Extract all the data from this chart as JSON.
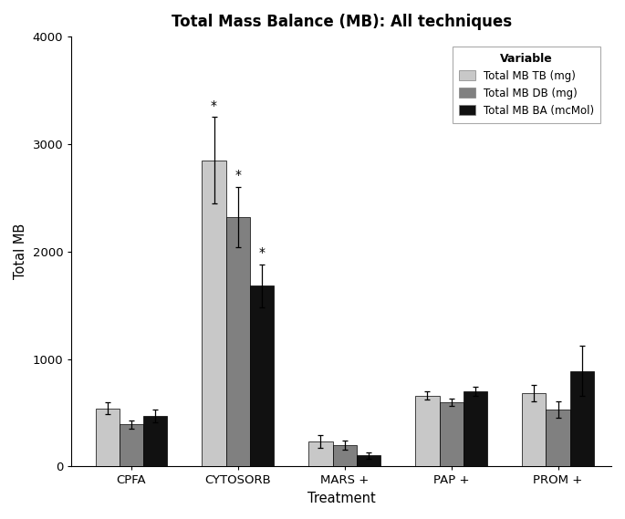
{
  "title": "Total Mass Balance (MB): All techniques",
  "xlabel": "Treatment",
  "ylabel": "Total MB",
  "ylim": [
    0,
    4000
  ],
  "yticks": [
    0,
    1000,
    2000,
    3000,
    4000
  ],
  "categories": [
    "CPFA",
    "CYTOSORB",
    "MARS +",
    "PAP +",
    "PROM +"
  ],
  "series": {
    "TB": {
      "label": "Total MB TB (mg)",
      "color": "#c8c8c8",
      "values": [
        540,
        2850,
        230,
        660,
        680
      ],
      "errors": [
        55,
        400,
        60,
        40,
        75
      ]
    },
    "DB": {
      "label": "Total MB DB (mg)",
      "color": "#808080",
      "values": [
        390,
        2320,
        200,
        600,
        530
      ],
      "errors": [
        35,
        280,
        45,
        35,
        75
      ]
    },
    "BA": {
      "label": "Total MB BA (mcMol)",
      "color": "#111111",
      "values": [
        470,
        1680,
        105,
        700,
        890
      ],
      "errors": [
        60,
        200,
        30,
        40,
        230
      ]
    }
  },
  "significance": {
    "CYTOSORB_TB": true,
    "CYTOSORB_DB": true,
    "CYTOSORB_BA": true
  },
  "legend_title": "Variable",
  "bar_width": 0.18,
  "background_color": "#ffffff",
  "fig_width": 6.85,
  "fig_height": 5.69,
  "dpi": 100
}
